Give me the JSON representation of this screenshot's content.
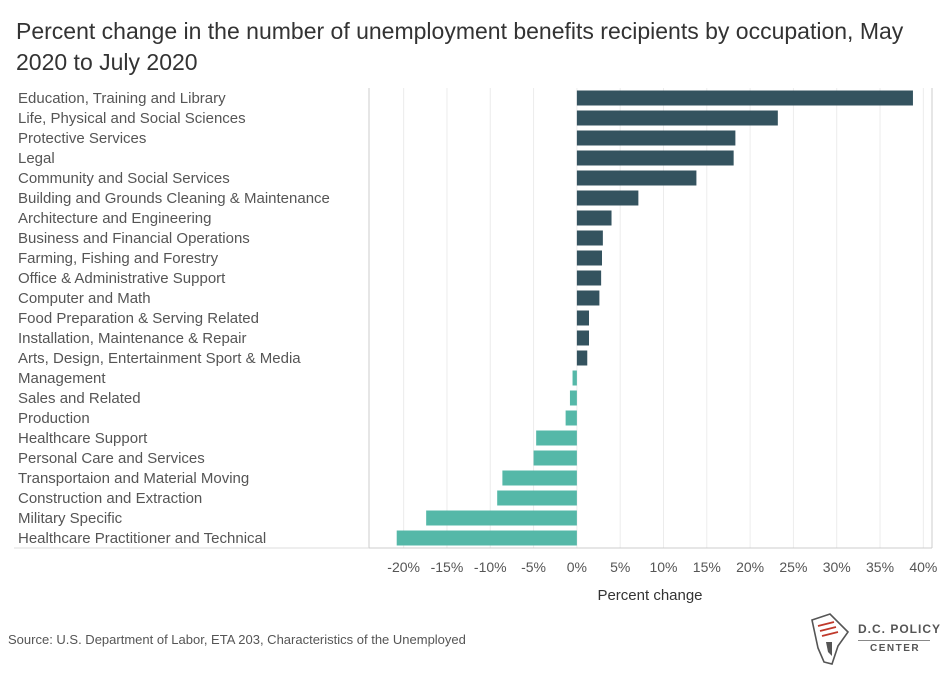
{
  "chart_data": {
    "type": "bar",
    "orientation": "horizontal",
    "title": "Percent change in the number of unemployment benefits recipients by occupation, May 2020 to July 2020",
    "xlabel": "Percent change",
    "ylabel": "",
    "xlim": [
      -24,
      41
    ],
    "x_ticks": [
      "-20%",
      "-15%",
      "-10%",
      "-5%",
      "0%",
      "5%",
      "10%",
      "15%",
      "20%",
      "25%",
      "30%",
      "35%",
      "40%"
    ],
    "x_tick_values": [
      -20,
      -15,
      -10,
      -5,
      0,
      5,
      10,
      15,
      20,
      25,
      30,
      35,
      40
    ],
    "grid": true,
    "colors": {
      "positive": "#34535f",
      "negative": "#55b8a8"
    },
    "categories": [
      "Education, Training and Library",
      "Life, Physical and Social Sciences",
      "Protective Services",
      "Legal",
      "Community and Social Services",
      "Building and Grounds Cleaning & Maintenance",
      "Architecture and Engineering",
      "Business and Financial Operations",
      "Farming, Fishing and Forestry",
      "Office & Administrative Support",
      "Computer and Math",
      "Food Preparation & Serving Related",
      "Installation, Maintenance & Repair",
      "Arts, Design, Entertainment Sport & Media",
      "Management",
      "Sales and Related",
      "Production",
      "Healthcare Support",
      "Personal Care and Services",
      "Transportaion and Material Moving",
      "Construction and Extraction",
      "Military Specific",
      "Healthcare Practitioner and Technical"
    ],
    "values": [
      38.8,
      23.2,
      18.3,
      18.1,
      13.8,
      7.1,
      4.0,
      3.0,
      2.9,
      2.8,
      2.6,
      1.4,
      1.4,
      1.2,
      -0.5,
      -0.8,
      -1.3,
      -4.7,
      -5.0,
      -8.6,
      -9.2,
      -17.4,
      -20.8
    ]
  },
  "source": "Source: U.S. Department of Labor, ETA 203, Characteristics of the Unemployed",
  "logo": {
    "line1": "D.C. POLICY",
    "line2": "CENTER",
    "icon": "dc-map-icon"
  }
}
